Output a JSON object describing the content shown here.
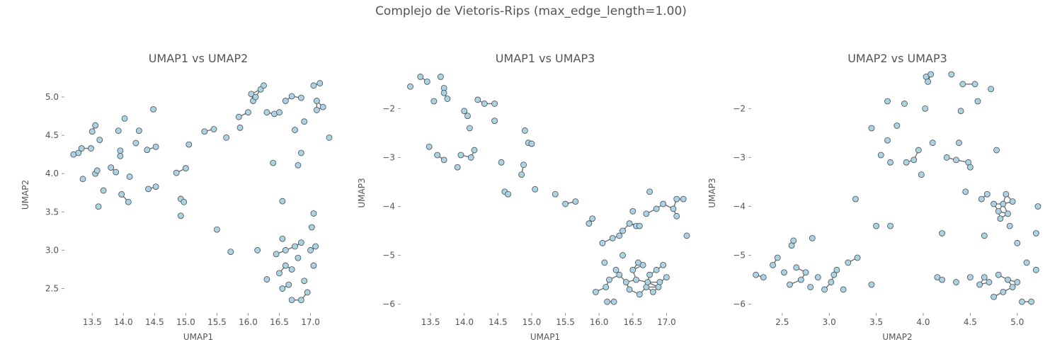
{
  "figure_title": "Complejo de Vietoris-Rips (max_edge_length=1.00)",
  "colors": {
    "background": "#ffffff",
    "point_fill": "#a8d4e6",
    "point_stroke": "#4a4a4a",
    "edge": "#555555",
    "text": "#555555"
  },
  "chart_data": [
    {
      "type": "scatter",
      "title": "UMAP1 vs UMAP2",
      "xlabel": "UMAP1",
      "ylabel": "UMAP2",
      "xlim": [
        13.1,
        17.3
      ],
      "ylim": [
        2.2,
        5.25
      ],
      "xticks": [
        13.5,
        14.0,
        14.5,
        15.0,
        15.5,
        16.0,
        16.5,
        17.0
      ],
      "xtick_labels": [
        "13.5",
        "14.0",
        "14.5",
        "15.0",
        "15.5",
        "16.0",
        "16.5",
        "17.0"
      ],
      "yticks": [
        2.5,
        3.0,
        3.5,
        4.0,
        4.5,
        5.0
      ],
      "ytick_labels": [
        "2.5",
        "3.0",
        "3.5",
        "4.0",
        "4.5",
        "5.0"
      ],
      "grid": false,
      "points": [
        [
          13.2,
          4.25
        ],
        [
          13.28,
          4.27
        ],
        [
          13.33,
          4.33
        ],
        [
          13.35,
          3.93
        ],
        [
          13.48,
          4.33
        ],
        [
          13.5,
          4.55
        ],
        [
          13.55,
          4.63
        ],
        [
          13.55,
          4.0
        ],
        [
          13.58,
          4.04
        ],
        [
          13.6,
          3.57
        ],
        [
          13.62,
          4.44
        ],
        [
          13.68,
          3.78
        ],
        [
          13.8,
          4.08
        ],
        [
          13.88,
          4.02
        ],
        [
          13.92,
          4.56
        ],
        [
          13.95,
          4.3
        ],
        [
          13.95,
          4.23
        ],
        [
          13.97,
          3.73
        ],
        [
          14.02,
          4.72
        ],
        [
          14.08,
          3.63
        ],
        [
          14.1,
          3.96
        ],
        [
          14.2,
          4.4
        ],
        [
          14.25,
          4.56
        ],
        [
          14.38,
          4.31
        ],
        [
          14.4,
          3.8
        ],
        [
          14.48,
          4.84
        ],
        [
          14.52,
          3.83
        ],
        [
          14.52,
          4.35
        ],
        [
          14.85,
          4.01
        ],
        [
          14.92,
          3.67
        ],
        [
          14.92,
          3.45
        ],
        [
          14.97,
          3.63
        ],
        [
          15.0,
          4.07
        ],
        [
          15.05,
          4.38
        ],
        [
          15.3,
          4.55
        ],
        [
          15.45,
          4.58
        ],
        [
          15.5,
          3.27
        ],
        [
          15.65,
          4.47
        ],
        [
          15.72,
          2.98
        ],
        [
          15.85,
          4.74
        ],
        [
          15.87,
          4.6
        ],
        [
          16.0,
          4.8
        ],
        [
          16.05,
          5.04
        ],
        [
          16.08,
          4.95
        ],
        [
          16.12,
          5.0
        ],
        [
          16.15,
          3.0
        ],
        [
          16.2,
          5.1
        ],
        [
          16.25,
          5.15
        ],
        [
          16.3,
          2.62
        ],
        [
          16.3,
          4.8
        ],
        [
          16.4,
          4.14
        ],
        [
          16.42,
          4.78
        ],
        [
          16.5,
          4.8
        ],
        [
          16.55,
          3.64
        ],
        [
          16.6,
          4.95
        ],
        [
          16.7,
          5.01
        ],
        [
          16.75,
          4.57
        ],
        [
          16.8,
          4.11
        ],
        [
          16.85,
          4.27
        ],
        [
          16.85,
          4.99
        ],
        [
          16.9,
          4.68
        ],
        [
          17.05,
          5.15
        ],
        [
          17.1,
          4.95
        ],
        [
          17.1,
          4.83
        ],
        [
          17.15,
          5.18
        ],
        [
          17.2,
          4.87
        ],
        [
          17.3,
          4.47
        ],
        [
          16.45,
          2.95
        ],
        [
          16.5,
          2.7
        ],
        [
          16.55,
          3.15
        ],
        [
          16.6,
          2.8
        ],
        [
          16.65,
          2.55
        ],
        [
          16.7,
          2.35
        ],
        [
          16.75,
          3.05
        ],
        [
          16.8,
          2.9
        ],
        [
          16.85,
          3.1
        ],
        [
          16.9,
          2.6
        ],
        [
          16.95,
          2.45
        ],
        [
          17.0,
          3.0
        ],
        [
          17.05,
          2.8
        ],
        [
          17.02,
          3.3
        ],
        [
          17.05,
          3.48
        ],
        [
          16.55,
          2.5
        ],
        [
          16.6,
          3.0
        ],
        [
          16.7,
          2.75
        ],
        [
          16.85,
          2.35
        ],
        [
          17.08,
          3.05
        ]
      ]
    },
    {
      "type": "scatter",
      "title": "UMAP1 vs UMAP3",
      "xlabel": "UMAP1",
      "ylabel": "UMAP3",
      "xlim": [
        13.1,
        17.3
      ],
      "ylim": [
        -6.15,
        -1.3
      ],
      "xticks": [
        13.5,
        14.0,
        14.5,
        15.0,
        15.5,
        16.0,
        16.5,
        17.0
      ],
      "xtick_labels": [
        "13.5",
        "14.0",
        "14.5",
        "15.0",
        "15.5",
        "16.0",
        "16.5",
        "17.0"
      ],
      "yticks": [
        -6,
        -5,
        -4,
        -3,
        -2
      ],
      "ytick_labels": [
        "−6",
        "−5",
        "−4",
        "−3",
        "−2"
      ],
      "grid": false,
      "points": [
        [
          13.2,
          -1.55
        ],
        [
          13.35,
          -1.35
        ],
        [
          13.45,
          -1.45
        ],
        [
          13.55,
          -1.85
        ],
        [
          13.65,
          -1.35
        ],
        [
          13.7,
          -1.58
        ],
        [
          13.7,
          -1.68
        ],
        [
          13.75,
          -1.8
        ],
        [
          13.48,
          -2.78
        ],
        [
          13.6,
          -2.95
        ],
        [
          13.7,
          -3.05
        ],
        [
          13.9,
          -3.2
        ],
        [
          13.95,
          -2.95
        ],
        [
          14.0,
          -2.05
        ],
        [
          14.05,
          -2.15
        ],
        [
          14.08,
          -2.4
        ],
        [
          14.1,
          -3.0
        ],
        [
          14.15,
          -2.85
        ],
        [
          14.2,
          -1.82
        ],
        [
          14.3,
          -1.9
        ],
        [
          14.45,
          -1.9
        ],
        [
          14.45,
          -2.25
        ],
        [
          14.55,
          -3.1
        ],
        [
          14.6,
          -3.7
        ],
        [
          14.65,
          -3.75
        ],
        [
          14.85,
          -3.35
        ],
        [
          14.88,
          -3.15
        ],
        [
          14.9,
          -2.45
        ],
        [
          14.95,
          -2.7
        ],
        [
          15.0,
          -2.72
        ],
        [
          15.05,
          -3.65
        ],
        [
          15.35,
          -3.75
        ],
        [
          15.5,
          -3.95
        ],
        [
          15.65,
          -3.9
        ],
        [
          15.85,
          -4.35
        ],
        [
          15.9,
          -4.25
        ],
        [
          15.95,
          -5.75
        ],
        [
          16.05,
          -4.75
        ],
        [
          16.08,
          -5.15
        ],
        [
          16.1,
          -5.65
        ],
        [
          16.12,
          -5.95
        ],
        [
          16.15,
          -5.5
        ],
        [
          16.2,
          -4.65
        ],
        [
          16.22,
          -5.95
        ],
        [
          16.25,
          -5.3
        ],
        [
          16.3,
          -4.6
        ],
        [
          16.35,
          -4.5
        ],
        [
          16.35,
          -5.0
        ],
        [
          16.45,
          -4.35
        ],
        [
          16.5,
          -4.1
        ],
        [
          16.55,
          -4.4
        ],
        [
          16.6,
          -4.4
        ],
        [
          16.7,
          -4.15
        ],
        [
          16.75,
          -3.7
        ],
        [
          16.85,
          -4.05
        ],
        [
          16.95,
          -3.95
        ],
        [
          17.1,
          -4.05
        ],
        [
          17.15,
          -3.85
        ],
        [
          17.15,
          -4.2
        ],
        [
          17.25,
          -3.85
        ],
        [
          17.3,
          -4.6
        ],
        [
          16.3,
          -5.4
        ],
        [
          16.4,
          -5.55
        ],
        [
          16.45,
          -5.7
        ],
        [
          16.5,
          -5.3
        ],
        [
          16.55,
          -5.5
        ],
        [
          16.6,
          -5.8
        ],
        [
          16.65,
          -5.2
        ],
        [
          16.7,
          -5.65
        ],
        [
          16.75,
          -5.4
        ],
        [
          16.8,
          -5.75
        ],
        [
          16.85,
          -5.3
        ],
        [
          16.9,
          -5.55
        ],
        [
          16.95,
          -5.2
        ],
        [
          17.0,
          -5.45
        ],
        [
          16.58,
          -5.15
        ],
        [
          16.72,
          -5.55
        ],
        [
          16.88,
          -5.65
        ]
      ]
    },
    {
      "type": "scatter",
      "title": "UMAP2 vs UMAP3",
      "xlabel": "UMAP2",
      "ylabel": "UMAP3",
      "xlim": [
        2.2,
        5.25
      ],
      "ylim": [
        -6.15,
        -1.3
      ],
      "xticks": [
        2.5,
        3.0,
        3.5,
        4.0,
        4.5,
        5.0
      ],
      "xtick_labels": [
        "2.5",
        "3.0",
        "3.5",
        "4.0",
        "4.5",
        "5.0"
      ],
      "yticks": [
        -6,
        -5,
        -4,
        -3,
        -2
      ],
      "ytick_labels": [
        "−6",
        "−5",
        "−4",
        "−3",
        "−2"
      ],
      "grid": false,
      "points": [
        [
          2.22,
          -5.4
        ],
        [
          2.3,
          -5.45
        ],
        [
          2.4,
          -5.2
        ],
        [
          2.45,
          -5.05
        ],
        [
          2.52,
          -5.35
        ],
        [
          2.58,
          -5.6
        ],
        [
          2.6,
          -4.8
        ],
        [
          2.62,
          -4.7
        ],
        [
          2.65,
          -5.25
        ],
        [
          2.7,
          -5.5
        ],
        [
          2.75,
          -5.35
        ],
        [
          2.8,
          -5.65
        ],
        [
          2.82,
          -4.65
        ],
        [
          2.88,
          -5.45
        ],
        [
          2.95,
          -5.7
        ],
        [
          3.02,
          -5.55
        ],
        [
          3.08,
          -5.3
        ],
        [
          3.15,
          -5.7
        ],
        [
          3.2,
          -5.15
        ],
        [
          3.3,
          -5.05
        ],
        [
          3.45,
          -5.6
        ],
        [
          3.5,
          -4.4
        ],
        [
          3.28,
          -3.85
        ],
        [
          3.05,
          -5.4
        ],
        [
          3.45,
          -2.4
        ],
        [
          3.55,
          -2.95
        ],
        [
          3.62,
          -1.85
        ],
        [
          3.62,
          -2.65
        ],
        [
          3.65,
          -3.1
        ],
        [
          3.65,
          -4.4
        ],
        [
          3.72,
          -2.35
        ],
        [
          3.8,
          -1.9
        ],
        [
          3.82,
          -3.1
        ],
        [
          3.9,
          -3.05
        ],
        [
          3.95,
          -2.85
        ],
        [
          3.98,
          -3.35
        ],
        [
          4.02,
          -2.0
        ],
        [
          4.03,
          -1.35
        ],
        [
          4.05,
          -1.45
        ],
        [
          4.08,
          -1.3
        ],
        [
          4.1,
          -2.7
        ],
        [
          4.15,
          -5.45
        ],
        [
          4.2,
          -4.55
        ],
        [
          4.25,
          -3.0
        ],
        [
          4.3,
          -1.3
        ],
        [
          4.35,
          -3.05
        ],
        [
          4.38,
          -2.7
        ],
        [
          4.4,
          -2.05
        ],
        [
          4.42,
          -1.5
        ],
        [
          4.45,
          -3.7
        ],
        [
          4.48,
          -3.1
        ],
        [
          4.5,
          -3.2
        ],
        [
          4.55,
          -1.5
        ],
        [
          4.58,
          -1.85
        ],
        [
          4.62,
          -3.85
        ],
        [
          4.65,
          -4.6
        ],
        [
          4.68,
          -3.75
        ],
        [
          4.72,
          -1.6
        ],
        [
          4.75,
          -3.95
        ],
        [
          4.78,
          -2.85
        ],
        [
          4.8,
          -4.1
        ],
        [
          4.82,
          -4.25
        ],
        [
          4.85,
          -3.95
        ],
        [
          4.88,
          -3.75
        ],
        [
          4.9,
          -4.15
        ],
        [
          4.92,
          -4.4
        ],
        [
          4.95,
          -3.9
        ],
        [
          5.0,
          -4.75
        ],
        [
          5.05,
          -5.95
        ],
        [
          5.1,
          -5.15
        ],
        [
          5.15,
          -5.95
        ],
        [
          5.2,
          -4.55
        ],
        [
          5.2,
          -5.3
        ],
        [
          5.22,
          -4.0
        ],
        [
          4.2,
          -5.5
        ],
        [
          4.35,
          -5.55
        ],
        [
          4.5,
          -5.45
        ],
        [
          4.6,
          -5.6
        ],
        [
          4.7,
          -5.55
        ],
        [
          4.8,
          -5.4
        ],
        [
          4.85,
          -5.75
        ],
        [
          4.9,
          -5.5
        ],
        [
          4.95,
          -5.65
        ],
        [
          5.0,
          -5.55
        ],
        [
          4.75,
          -5.85
        ],
        [
          4.65,
          -5.45
        ]
      ]
    }
  ]
}
